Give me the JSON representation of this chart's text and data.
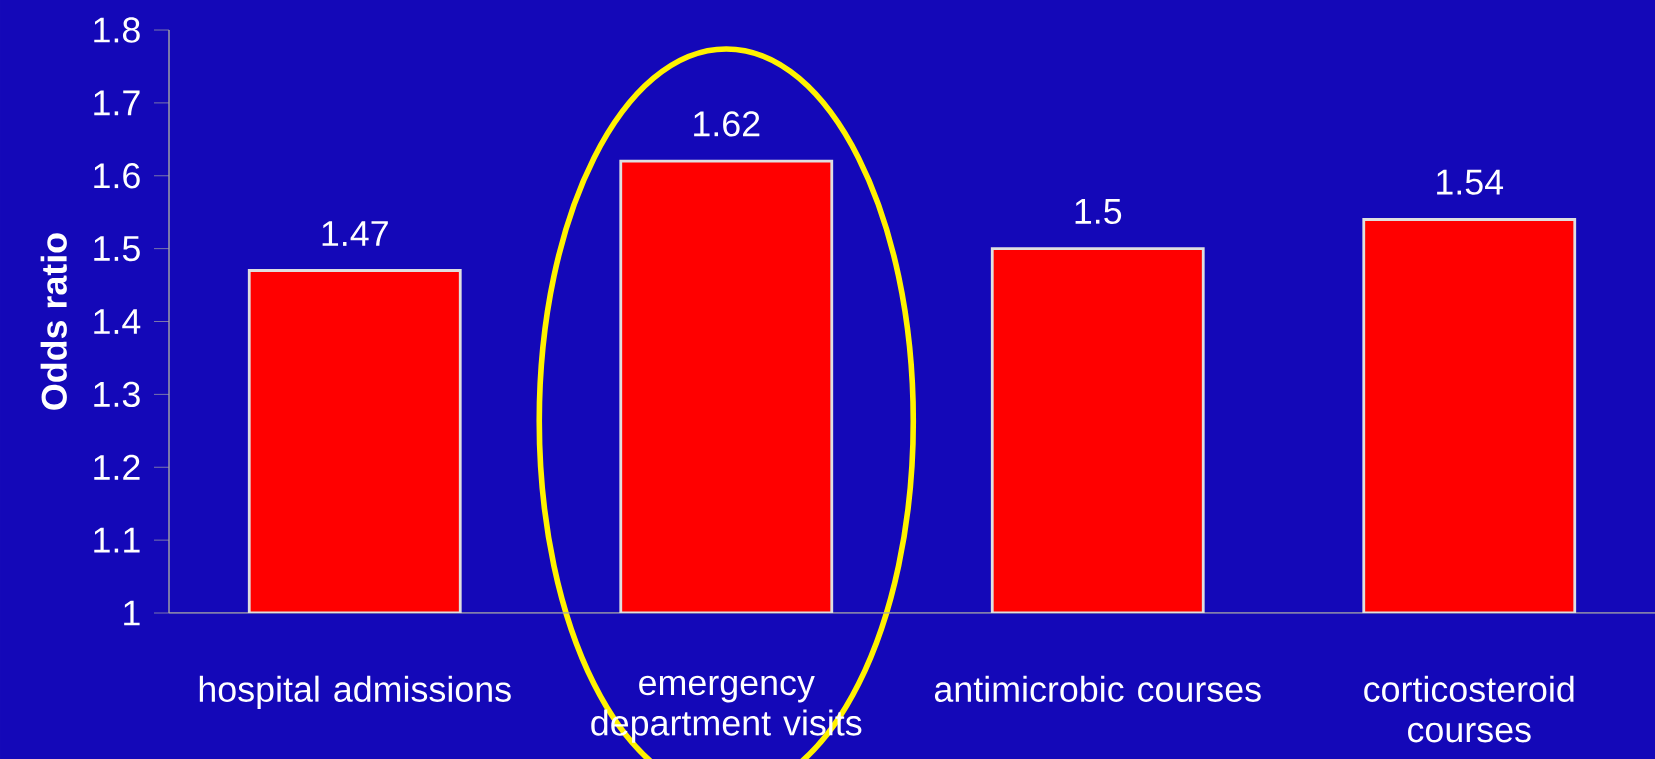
{
  "chart_data": {
    "type": "bar",
    "ylabel": "Odds ratio",
    "categories": [
      "hospital admissions",
      "emergency department visits",
      "antimicrobic courses",
      "corticosteroid courses"
    ],
    "values": [
      1.47,
      1.62,
      1.5,
      1.54
    ],
    "color": "#ff0000",
    "ylim": [
      1,
      1.8
    ],
    "yticks": [
      1,
      1.1,
      1.2,
      1.3,
      1.4,
      1.5,
      1.6,
      1.7,
      1.8
    ],
    "data_labels": true,
    "grid": false
  }
}
